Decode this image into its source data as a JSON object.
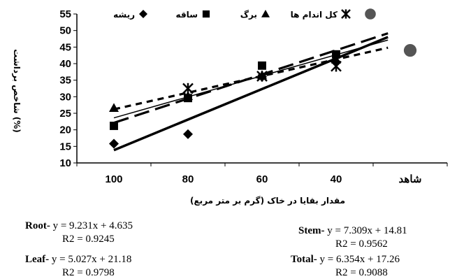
{
  "chart_data": {
    "type": "scatter",
    "ylabel": "شاخص برداشت (%)",
    "xlabel": "مقدار بقایا در خاک (گرم بر متر مربع)",
    "categories": [
      "100",
      "80",
      "60",
      "40",
      "شاهد"
    ],
    "ylim": [
      10,
      55
    ],
    "yticks": [
      "10",
      "15",
      "20",
      "25",
      "30",
      "35",
      "40",
      "45",
      "50",
      "55"
    ],
    "legend_position": "top",
    "series": [
      {
        "name": "ریشه",
        "marker": "diamond",
        "values": [
          15.8,
          18.7,
          36,
          40.5,
          null
        ]
      },
      {
        "name": "ساقه",
        "marker": "square",
        "values": [
          21.2,
          29.6,
          39.4,
          42.8,
          null
        ]
      },
      {
        "name": "برگ",
        "marker": "triangle",
        "values": [
          26.6,
          30.2,
          36.5,
          41.2,
          null
        ]
      },
      {
        "name": "کل اندام ها",
        "marker": "star",
        "values": [
          null,
          32.5,
          36.2,
          39.2,
          null
        ]
      },
      {
        "name": "",
        "marker": "circle",
        "values": [
          null,
          null,
          null,
          null,
          44
        ]
      }
    ],
    "trendlines": [
      {
        "series": "ریشه",
        "style": "solid-thick",
        "slope": 9.231,
        "intercept": 4.635
      },
      {
        "series": "ساقه",
        "style": "long-dash",
        "slope": 7.309,
        "intercept": 14.81
      },
      {
        "series": "برگ",
        "style": "short-dash",
        "slope": 5.027,
        "intercept": 21.18
      },
      {
        "series": "کل اندام ها",
        "style": "solid-thin",
        "slope": 6.354,
        "intercept": 17.26
      }
    ]
  },
  "equations": [
    {
      "label": "Root-",
      "eq": " y = 9.231x + 4.635",
      "r2": "R2 = 0.9245"
    },
    {
      "label": "Stem-",
      "eq": " y = 7.309x + 14.81",
      "r2": "R2 = 0.9562"
    },
    {
      "label": "Leaf-",
      "eq": " y = 5.027x + 21.18",
      "r2": "R2 = 0.9798"
    },
    {
      "label": "Total-",
      "eq": " y = 6.354x + 17.26",
      "r2": "R2 = 0.9088"
    }
  ]
}
